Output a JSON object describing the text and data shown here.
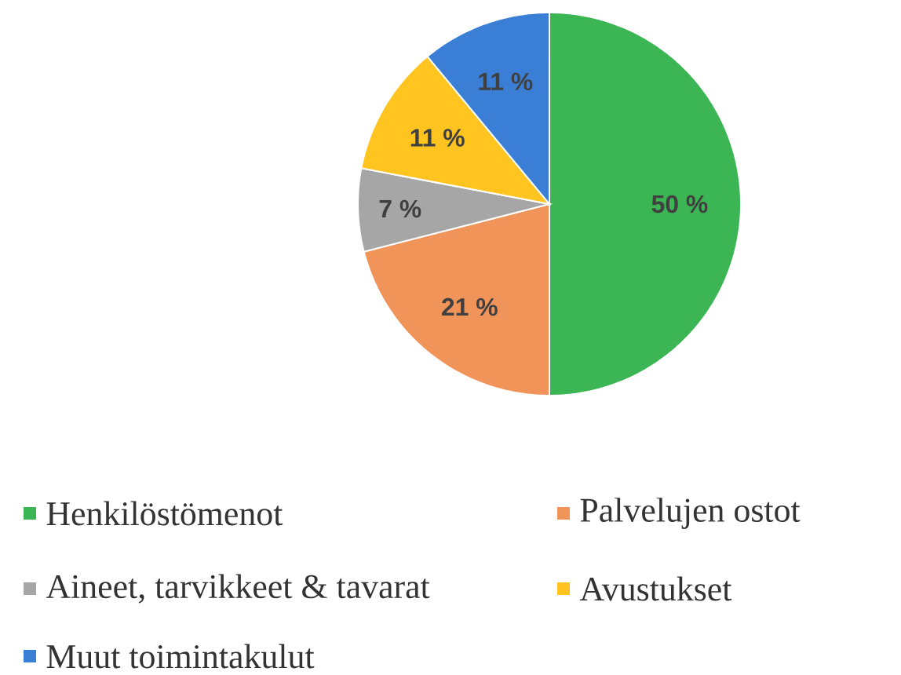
{
  "chart_data": {
    "type": "pie",
    "categories": [
      "Henkilöstömenot",
      "Palvelujen ostot",
      "Aineet, tarvikkeet & tavarat",
      "Avustukset",
      "Muut toimintakulut"
    ],
    "values": [
      50,
      21,
      7,
      11,
      11
    ],
    "colors": [
      "#3cb554",
      "#f0945a",
      "#a6a6a6",
      "#ffc41f",
      "#3a7fd5"
    ],
    "value_labels": [
      "50 %",
      "21 %",
      "7 %",
      "11 %",
      "11 %"
    ],
    "legend": "bottom"
  }
}
